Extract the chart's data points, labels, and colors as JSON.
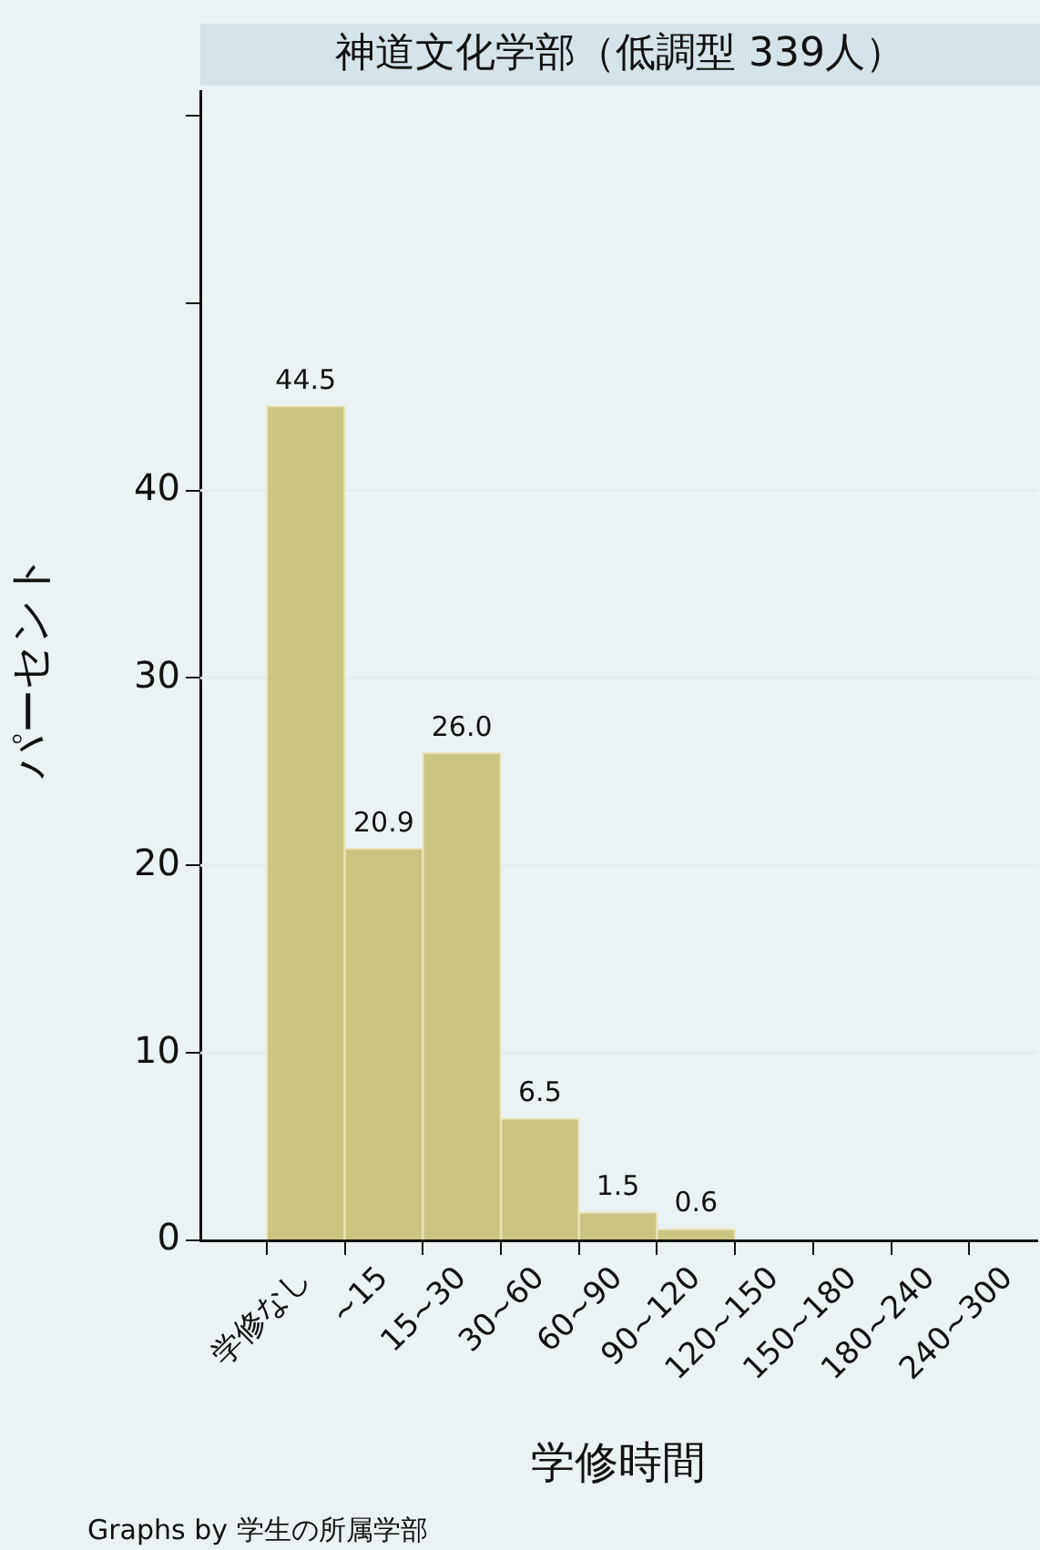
{
  "chart_data": {
    "type": "bar",
    "title": "神道文化学部（低調型 339人）",
    "xlabel": "学修時間",
    "ylabel": "パーセント",
    "categories": [
      "学修なし",
      "~15",
      "15~30",
      "30~60",
      "60~90",
      "90~120",
      "120~150",
      "150~180",
      "180~240",
      "240~300"
    ],
    "values": [
      44.5,
      20.9,
      26.0,
      6.5,
      1.5,
      0.6,
      null,
      null,
      null,
      null
    ],
    "value_labels": [
      "44.5",
      "20.9",
      "26.0",
      "6.5",
      "1.5",
      "0.6",
      null,
      null,
      null,
      null
    ],
    "color": "#cbc583",
    "ylim": [
      0,
      61.3
    ],
    "yticks": [
      0,
      10,
      20,
      30,
      40,
      {
        "value": 50,
        "label": null
      },
      {
        "value": 60,
        "label": null
      }
    ],
    "grid": "y",
    "legend": false,
    "annotations": [
      "Graphs by 学生の所属学部"
    ]
  }
}
